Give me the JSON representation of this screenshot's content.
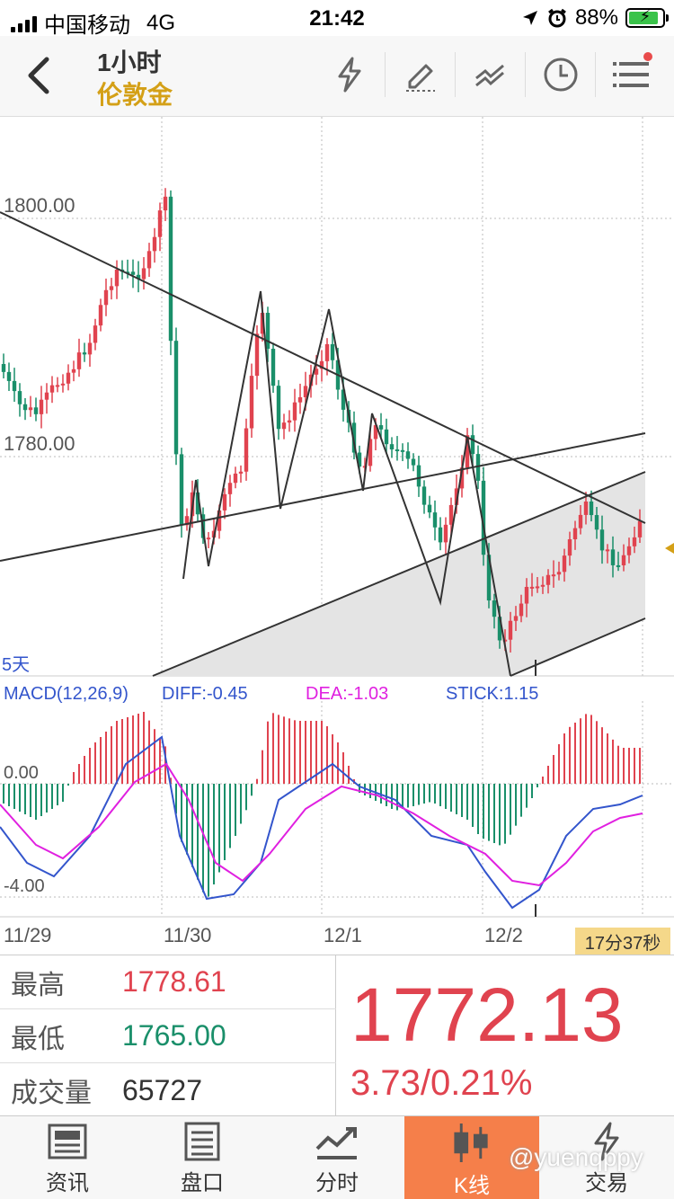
{
  "status_bar": {
    "carrier": "中国移动",
    "network": "4G",
    "time": "21:42",
    "battery": "88%",
    "battery_level": 0.88
  },
  "nav": {
    "period": "1小时",
    "instrument": "伦敦金"
  },
  "chart": {
    "price_axis": [
      "1800.00",
      "1780.00"
    ],
    "ma_label": "5天",
    "macd_title": "MACD(12,26,9)",
    "diff_label": "DIFF:-0.45",
    "dea_label": "DEA:-1.03",
    "stick_label": "STICK:1.15",
    "macd_axis": [
      "0.00",
      "-4.00"
    ],
    "dates": [
      "11/29",
      "11/30",
      "12/1",
      "12/2"
    ],
    "countdown": "17分37秒",
    "colors": {
      "up": "#e0434f",
      "down": "#1a8f6a",
      "diff": "#3355cc",
      "dea": "#e020e0"
    }
  },
  "quote": {
    "high_label": "最高",
    "high": "1778.61",
    "low_label": "最低",
    "low": "1765.00",
    "volume_label": "成交量",
    "volume": "65727",
    "price": "1772.13",
    "change": "3.73/0.21%"
  },
  "tabs": [
    {
      "label": "资讯",
      "icon": "news-icon"
    },
    {
      "label": "盘口",
      "icon": "orderbook-icon"
    },
    {
      "label": "分时",
      "icon": "timeshare-icon"
    },
    {
      "label": "K线",
      "icon": "kline-icon"
    },
    {
      "label": "交易",
      "icon": "trade-icon"
    }
  ],
  "watermark": "@yuenqppy"
}
